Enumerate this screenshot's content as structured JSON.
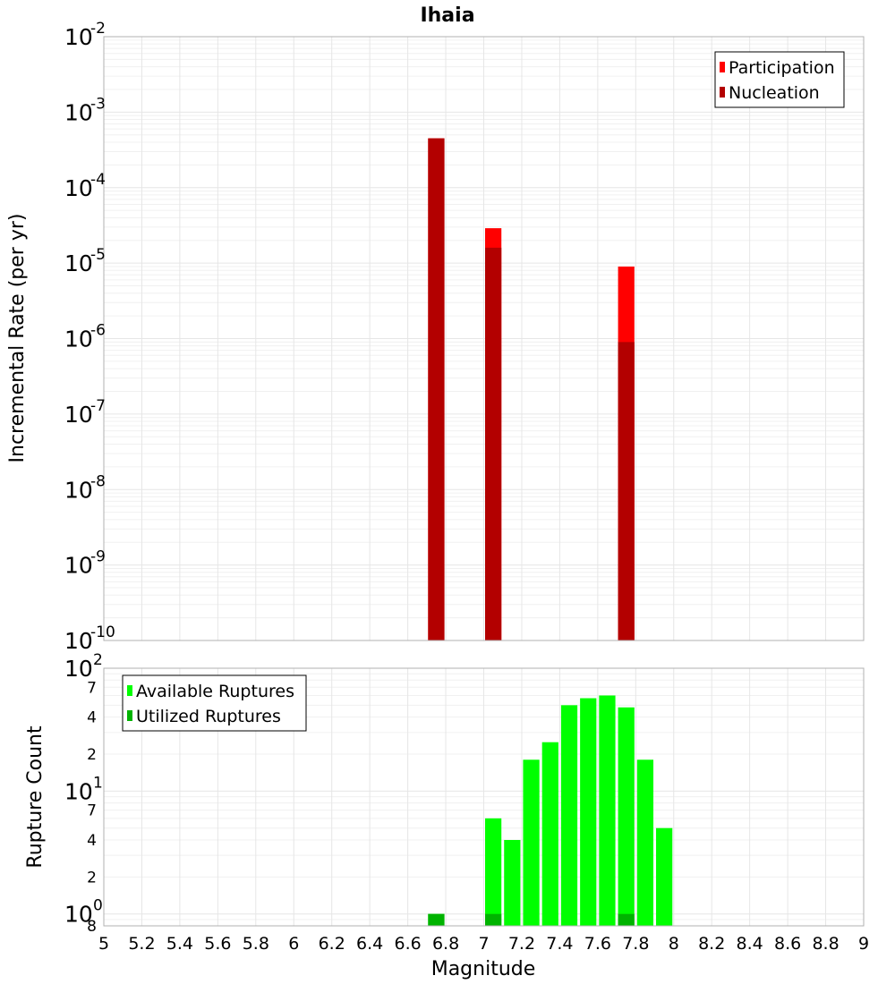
{
  "chart_data": {
    "type": "bar",
    "title": "Ihaia",
    "xlabel": "Magnitude",
    "xlim": [
      5,
      9
    ],
    "x_ticks": [
      "5",
      "5.2",
      "5.4",
      "5.6",
      "5.8",
      "6",
      "6.2",
      "6.4",
      "6.6",
      "6.8",
      "7",
      "7.2",
      "7.4",
      "7.6",
      "7.8",
      "8",
      "8.2",
      "8.4",
      "8.6",
      "8.8",
      "9"
    ],
    "bin_width": 0.1,
    "panels": [
      {
        "name": "rates",
        "ylabel": "Incremental Rate (per yr)",
        "yscale": "log",
        "ylim": [
          1e-10,
          0.01
        ],
        "y_tick_bases": [
          "10",
          "10",
          "10",
          "10",
          "10",
          "10",
          "10",
          "10",
          "10"
        ],
        "y_tick_exponents": [
          "-10",
          "-9",
          "-8",
          "-7",
          "-6",
          "-5",
          "-4",
          "-3",
          "-2"
        ],
        "legend": {
          "position": "top-right",
          "entries": [
            "Participation",
            "Nucleation"
          ]
        },
        "series": [
          {
            "name": "Participation",
            "color": "#ff0000",
            "points": [
              {
                "x": 6.75,
                "y": 0.00045
              },
              {
                "x": 7.05,
                "y": 2.9e-05
              },
              {
                "x": 7.75,
                "y": 9e-06
              }
            ]
          },
          {
            "name": "Nucleation",
            "color": "#b30000",
            "points": [
              {
                "x": 6.75,
                "y": 0.00045
              },
              {
                "x": 7.05,
                "y": 1.6e-05
              },
              {
                "x": 7.75,
                "y": 9e-07
              }
            ]
          }
        ]
      },
      {
        "name": "counts",
        "ylabel": "Rupture Count",
        "yscale": "log",
        "ylim": [
          0.8,
          100
        ],
        "y_tick_labels": [
          {
            "value": 0.8,
            "base": "",
            "exp": "",
            "label": "8"
          },
          {
            "value": 1,
            "base": "10",
            "exp": "0",
            "label": ""
          },
          {
            "value": 2,
            "base": "",
            "exp": "",
            "label": "2"
          },
          {
            "value": 4,
            "base": "",
            "exp": "",
            "label": "4"
          },
          {
            "value": 7,
            "base": "",
            "exp": "",
            "label": "7"
          },
          {
            "value": 10,
            "base": "10",
            "exp": "1",
            "label": ""
          },
          {
            "value": 20,
            "base": "",
            "exp": "",
            "label": "2"
          },
          {
            "value": 40,
            "base": "",
            "exp": "",
            "label": "4"
          },
          {
            "value": 70,
            "base": "",
            "exp": "",
            "label": "7"
          },
          {
            "value": 100,
            "base": "10",
            "exp": "2",
            "label": ""
          }
        ],
        "legend": {
          "position": "top-left",
          "entries": [
            "Available Ruptures",
            "Utilized Ruptures"
          ]
        },
        "series": [
          {
            "name": "Available Ruptures",
            "color": "#00ff00",
            "points": [
              {
                "x": 6.75,
                "y": 1
              },
              {
                "x": 7.05,
                "y": 6
              },
              {
                "x": 7.15,
                "y": 4
              },
              {
                "x": 7.25,
                "y": 18
              },
              {
                "x": 7.35,
                "y": 25
              },
              {
                "x": 7.45,
                "y": 50
              },
              {
                "x": 7.55,
                "y": 57
              },
              {
                "x": 7.65,
                "y": 60
              },
              {
                "x": 7.75,
                "y": 48
              },
              {
                "x": 7.85,
                "y": 18
              },
              {
                "x": 7.95,
                "y": 5
              }
            ]
          },
          {
            "name": "Utilized Ruptures",
            "color": "#00b300",
            "points": [
              {
                "x": 6.75,
                "y": 1
              },
              {
                "x": 7.05,
                "y": 1
              },
              {
                "x": 7.75,
                "y": 1
              }
            ]
          }
        ]
      }
    ]
  }
}
